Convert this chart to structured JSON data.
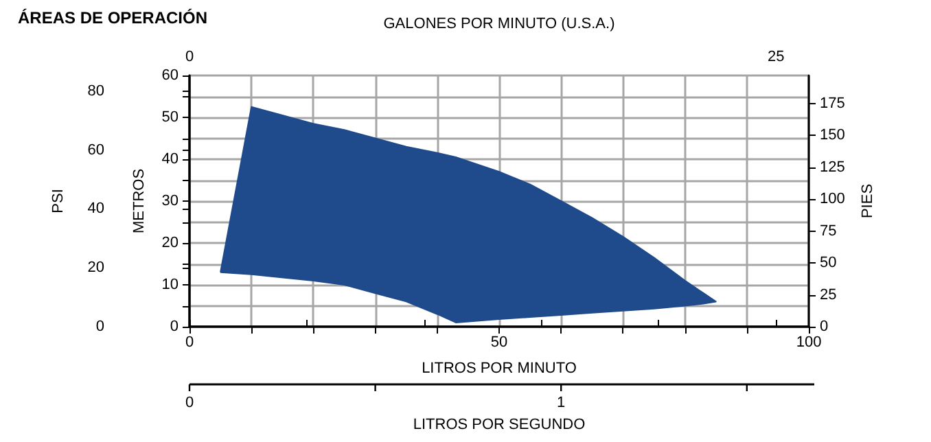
{
  "chart_data": {
    "type": "area",
    "title": "ÁREAS DE OPERACIÓN",
    "xlabel": "LITROS POR MINUTO",
    "ylabel": "METROS",
    "y2label": "PSI",
    "y3label": "PIES",
    "x2label": "GALONES POR MINUTO (U.S.A.)",
    "xlim": [
      0,
      100
    ],
    "xticks": [
      0,
      {
        "value": 10,
        "label": null
      },
      {
        "value": 20,
        "label": null
      },
      {
        "value": 30,
        "label": null
      },
      {
        "value": 40,
        "label": null
      },
      50,
      {
        "value": 60,
        "label": null
      },
      {
        "value": 70,
        "label": null
      },
      {
        "value": 80,
        "label": null
      },
      {
        "value": 90,
        "label": null
      },
      100
    ],
    "ylim": [
      0,
      60
    ],
    "yticks": [
      0,
      {
        "value": 5,
        "label": null
      },
      10,
      {
        "value": 15,
        "label": null
      },
      20,
      {
        "value": 25,
        "label": null
      },
      30,
      {
        "value": 35,
        "label": null
      },
      40,
      {
        "value": 45,
        "label": null
      },
      50,
      {
        "value": 55,
        "label": null
      },
      60
    ],
    "y2lim": [
      0,
      85.3
    ],
    "y2ticks": [
      0,
      20,
      40,
      60,
      80
    ],
    "y3lim": [
      0,
      196.9
    ],
    "y3ticks": [
      0,
      25,
      50,
      75,
      100,
      125,
      150,
      175
    ],
    "x2lim": [
      0,
      26.4
    ],
    "x2ticks": [
      0,
      {
        "value": 5,
        "label": null
      },
      {
        "value": 10,
        "label": null
      },
      {
        "value": 15,
        "label": null
      },
      {
        "value": 20,
        "label": null
      },
      25
    ],
    "annotations": [
      "0",
      "1",
      "LITROS POR SEGUNDO"
    ],
    "grid": true,
    "series": [
      {
        "color": "#1f4a8c",
        "x": [
          5,
          10,
          20,
          25,
          30,
          35,
          40,
          43,
          50,
          55,
          60,
          65,
          70,
          75,
          80,
          83,
          85,
          83,
          80,
          75,
          70,
          65,
          60,
          55,
          50,
          43,
          40,
          35,
          30,
          25,
          20,
          10,
          5
        ],
        "values": [
          13,
          52.5,
          48.5,
          47,
          45,
          43,
          41.5,
          40.5,
          37,
          34,
          30,
          26,
          21.5,
          16.5,
          11,
          8,
          6,
          5.5,
          5,
          4.3,
          3.8,
          3.3,
          2.8,
          2.3,
          1.8,
          1,
          3,
          6,
          8,
          10,
          11,
          12.5,
          13
        ]
      }
    ]
  }
}
